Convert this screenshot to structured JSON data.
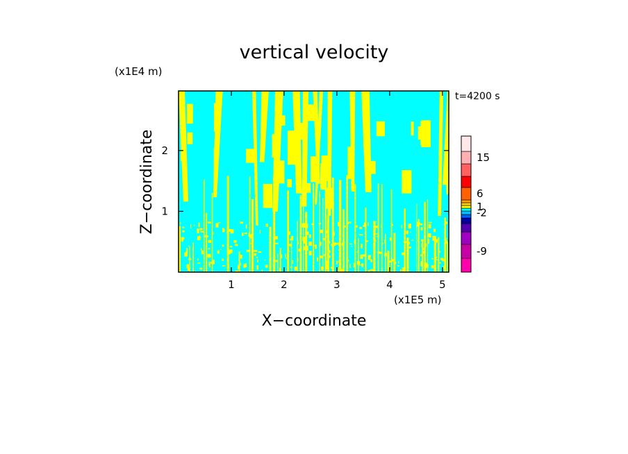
{
  "chart_data": {
    "type": "heatmap",
    "title": "vertical velocity",
    "xlabel": "X−coordinate",
    "ylabel": "Z−coordinate",
    "x_unit": "(x1E5 m)",
    "y_unit": "(x1E4 m)",
    "time_label": "t=4200 s",
    "xlim": [
      0,
      5.12
    ],
    "ylim": [
      0,
      2.98
    ],
    "x_ticks": [
      1,
      2,
      3,
      4,
      5
    ],
    "y_ticks": [
      1,
      2
    ],
    "x_tick_labels": [
      "1",
      "2",
      "3",
      "4",
      "5"
    ],
    "y_tick_labels": [
      "1",
      "2"
    ],
    "background_color": "#00ffff",
    "feature_color": "#ffff00",
    "colorbar": {
      "bands": [
        {
          "color": "#ff00ab"
        },
        {
          "color": "#c800a6"
        },
        {
          "color": "#a000c0"
        },
        {
          "color": "#5000b0"
        },
        {
          "color": "#0000a0"
        },
        {
          "color": "#0060ff"
        },
        {
          "color": "#00c0ff"
        },
        {
          "color": "#00ffff"
        },
        {
          "color": "#ffff00"
        },
        {
          "color": "#ffd000"
        },
        {
          "color": "#ffa000"
        },
        {
          "color": "#ff6000"
        },
        {
          "color": "#ff0000"
        },
        {
          "color": "#ff6060"
        },
        {
          "color": "#ffb0b0"
        },
        {
          "color": "#ffe8e8"
        }
      ],
      "labels": [
        "-9",
        "-2",
        "1",
        "6",
        "15"
      ],
      "label_band_index": [
        1,
        6,
        8,
        11,
        14
      ]
    }
  }
}
